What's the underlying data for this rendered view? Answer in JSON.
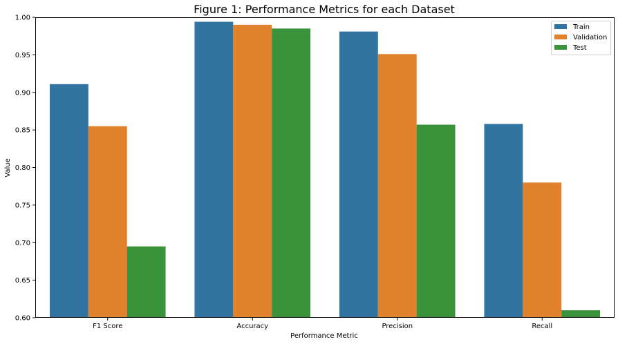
{
  "chart_data": {
    "type": "bar",
    "title": "Figure 1: Performance Metrics for each Dataset",
    "xlabel": "Performance Metric",
    "ylabel": "Value",
    "ylim": [
      0.6,
      1.0
    ],
    "yticks": [
      "0.60",
      "0.65",
      "0.70",
      "0.75",
      "0.80",
      "0.85",
      "0.90",
      "0.95",
      "1.00"
    ],
    "categories": [
      "F1 Score",
      "Accuracy",
      "Precision",
      "Recall"
    ],
    "legend_position": "top-right",
    "grid": false,
    "series": [
      {
        "name": "Train",
        "color": "#3274a1",
        "values": [
          0.911,
          0.994,
          0.981,
          0.858
        ]
      },
      {
        "name": "Validation",
        "color": "#e1812c",
        "values": [
          0.855,
          0.99,
          0.951,
          0.78
        ]
      },
      {
        "name": "Test",
        "color": "#3a923a",
        "values": [
          0.695,
          0.985,
          0.857,
          0.61
        ]
      }
    ]
  }
}
